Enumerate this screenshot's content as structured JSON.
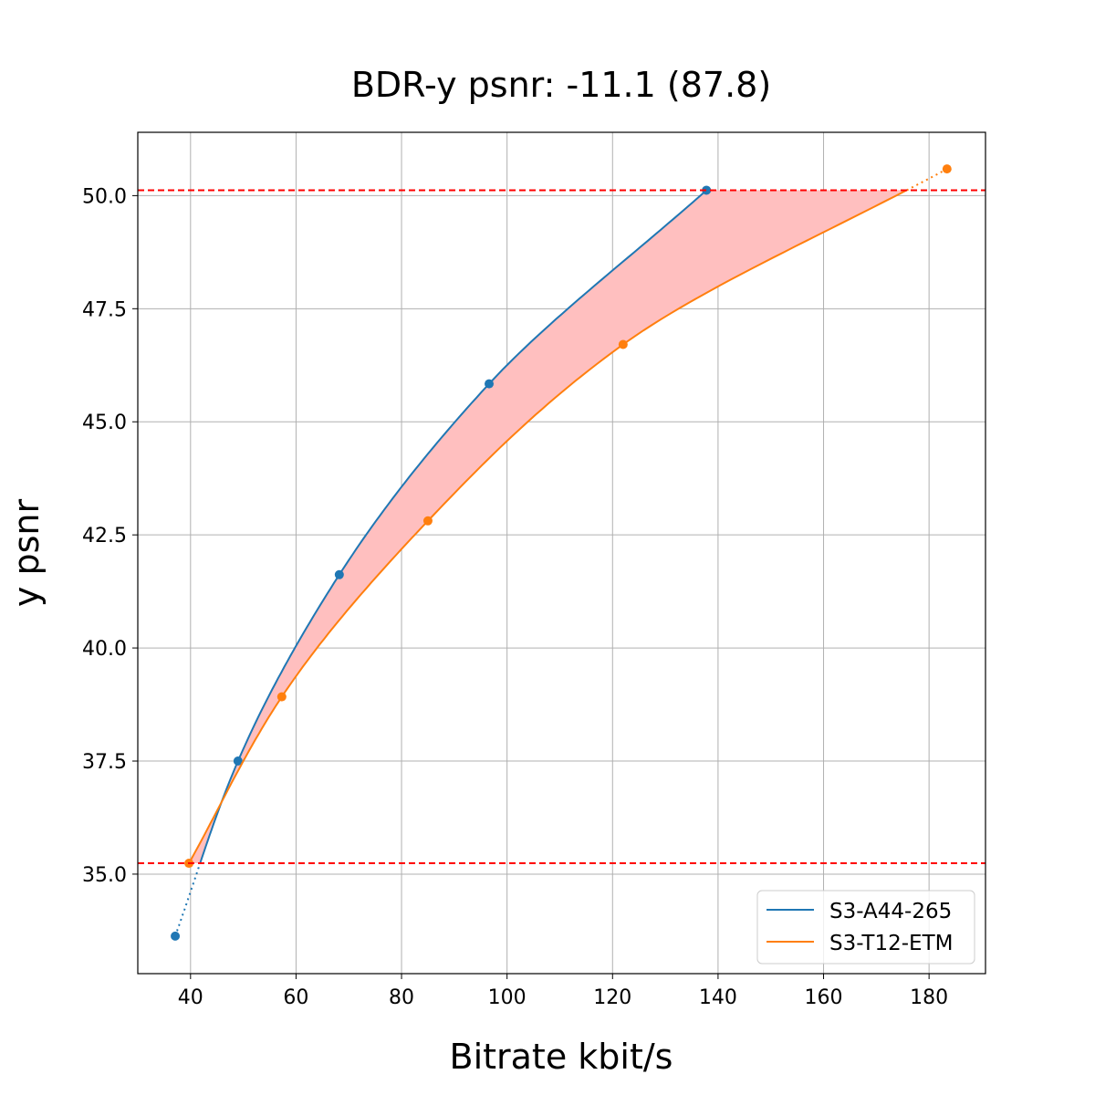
{
  "chart_data": {
    "type": "line",
    "title": "BDR-y psnr: -11.1 (87.8)",
    "xlabel": "Bitrate kbit/s",
    "ylabel": "y psnr",
    "xlim": [
      30,
      190.7
    ],
    "ylim": [
      32.8,
      51.4
    ],
    "xticks": [
      40,
      60,
      80,
      100,
      120,
      140,
      160,
      180
    ],
    "xtick_labels": [
      "40",
      "60",
      "80",
      "100",
      "120",
      "140",
      "160",
      "180"
    ],
    "yticks": [
      35.0,
      37.5,
      40.0,
      42.5,
      45.0,
      47.5,
      50.0
    ],
    "ytick_labels": [
      "35.0",
      "37.5",
      "40.0",
      "42.5",
      "45.0",
      "47.5",
      "50.0"
    ],
    "grid": true,
    "legend_position": "lower-right",
    "hlines": [
      50.12,
      35.24
    ],
    "hline_color": "#ff0000",
    "fill_color": "#ffbfbf",
    "series": [
      {
        "name": "S3-A44-265",
        "color": "#1f77b4",
        "x": [
          37.1,
          49.0,
          68.2,
          96.6,
          137.8
        ],
        "y": [
          33.63,
          37.5,
          41.62,
          45.84,
          50.12
        ]
      },
      {
        "name": "S3-T12-ETM",
        "color": "#ff7f0e",
        "x": [
          39.7,
          57.3,
          85.0,
          122.0,
          183.4
        ],
        "y": [
          35.24,
          38.92,
          42.81,
          46.71,
          50.59
        ]
      }
    ]
  }
}
